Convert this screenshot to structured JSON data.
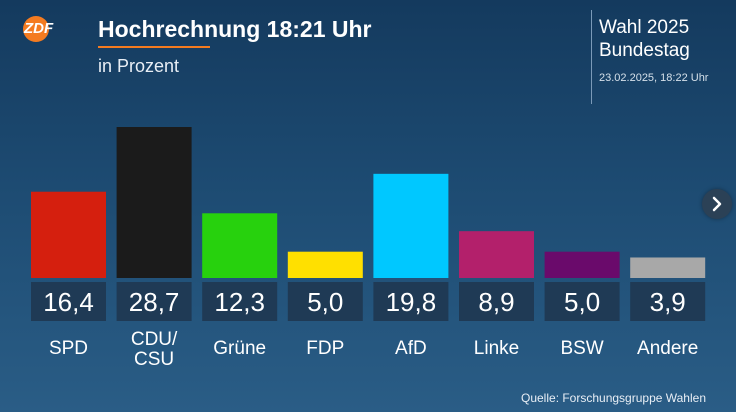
{
  "header": {
    "logo_text": "ZDF",
    "title": "Hochrechnung 18:21 Uhr",
    "subtitle": "in Prozent",
    "election_line1": "Wahl 2025",
    "election_line2": "Bundestag",
    "timestamp": "23.02.2025, 18:22 Uhr"
  },
  "footer": {
    "source": "Quelle: Forschungsgruppe Wahlen"
  },
  "colors": {
    "accent": "#f47b20",
    "value_box": "#1f3a55"
  },
  "icons": {
    "next": "chevron-right-icon"
  },
  "chart_data": {
    "type": "bar",
    "title": "Hochrechnung 18:21 Uhr",
    "subtitle": "in Prozent",
    "categories": [
      "SPD",
      "CDU/\nCSU",
      "Grüne",
      "FDP",
      "AfD",
      "Linke",
      "BSW",
      "Andere"
    ],
    "values": [
      16.4,
      28.7,
      12.3,
      5.0,
      19.8,
      8.9,
      5.0,
      3.9
    ],
    "value_labels": [
      "16,4",
      "28,7",
      "12,3",
      "5,0",
      "19,8",
      "8,9",
      "5,0",
      "3,9"
    ],
    "colors": [
      "#d51f0e",
      "#1b1b1b",
      "#27d10d",
      "#ffe000",
      "#00c8ff",
      "#b3206b",
      "#6a0a6b",
      "#a8a8a8"
    ],
    "ylim": [
      0,
      30
    ],
    "grid": false,
    "legend": "none"
  }
}
